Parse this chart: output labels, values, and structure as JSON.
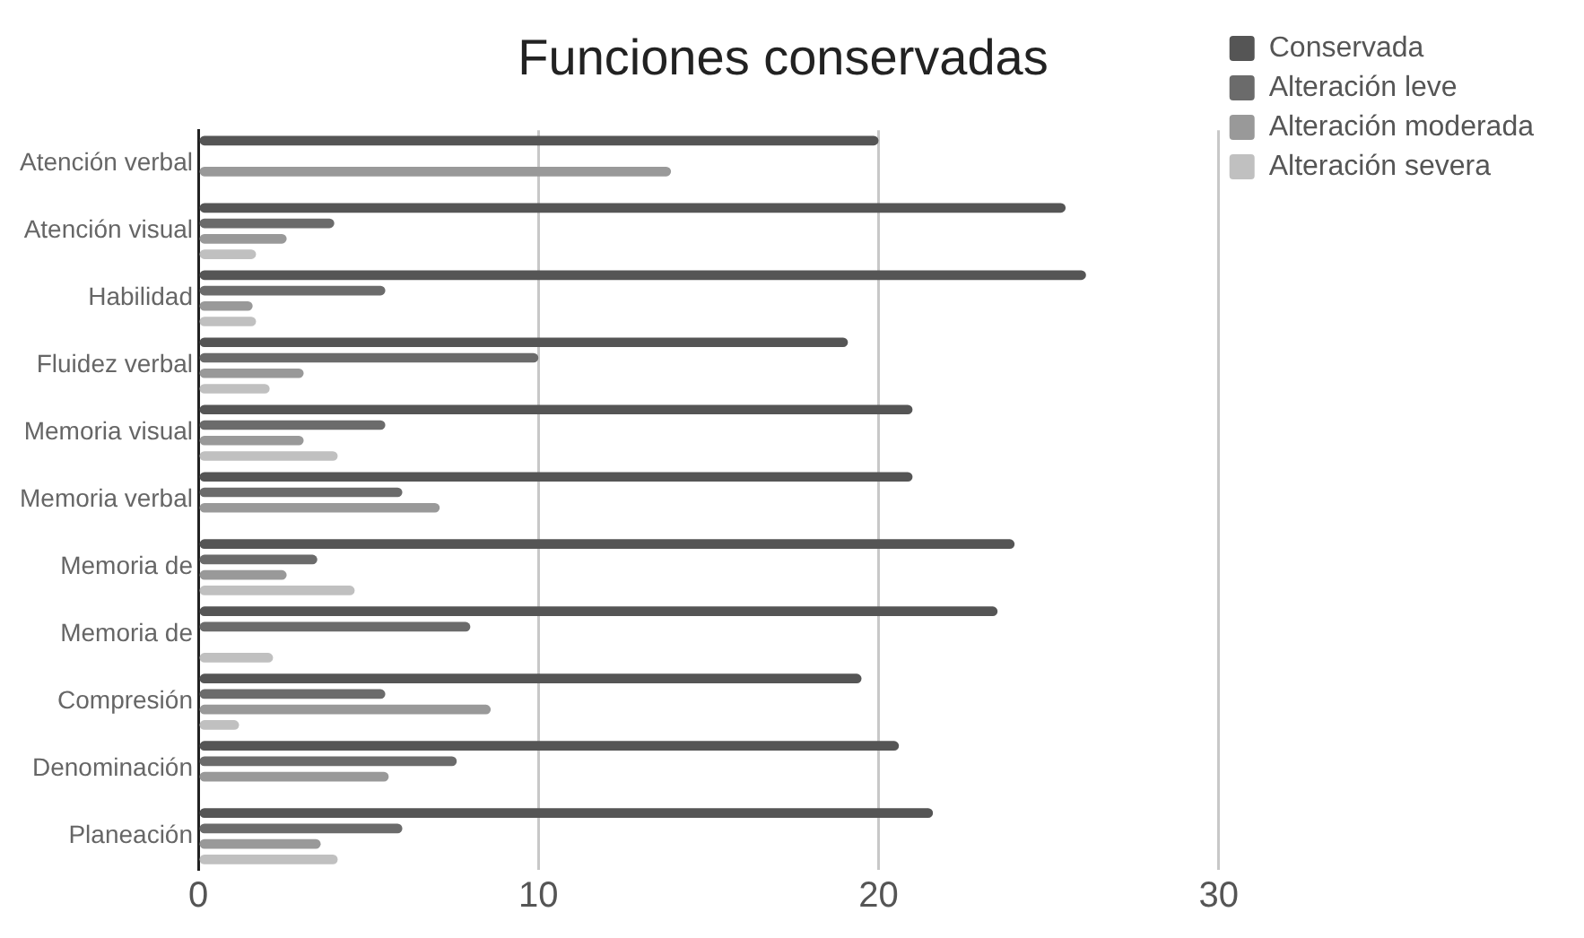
{
  "chart_data": {
    "type": "bar",
    "orientation": "horizontal",
    "title": "Funciones conservadas",
    "categories": [
      "Atención verbal",
      "Atención visual",
      "Habilidad",
      "Fluidez verbal",
      "Memoria visual",
      "Memoria verbal",
      "Memoria de",
      "Memoria de",
      "Compresión",
      "Denominación",
      "Planeación"
    ],
    "series": [
      {
        "name": "Conservada",
        "color": "#555555",
        "values": [
          20,
          25.5,
          26.1,
          19.1,
          21,
          21,
          24,
          23.5,
          19.5,
          20.6,
          21.6
        ]
      },
      {
        "name": "Alteración leve",
        "color": "#6b6b6b",
        "values": [
          null,
          4,
          5.5,
          10,
          5.5,
          6,
          3.5,
          8,
          5.5,
          7.6,
          6
        ]
      },
      {
        "name": "Alteración moderada",
        "color": "#999999",
        "values": [
          13.9,
          2.6,
          1.6,
          3.1,
          3.1,
          7.1,
          2.6,
          null,
          8.6,
          5.6,
          3.6
        ]
      },
      {
        "name": "Alteración severa",
        "color": "#c0c0c0",
        "values": [
          null,
          1.7,
          1.7,
          2.1,
          4.1,
          null,
          4.6,
          2.2,
          1.2,
          null,
          4.1
        ]
      }
    ],
    "xlim": [
      0,
      30
    ],
    "xticks": [
      0,
      10,
      20,
      30
    ],
    "grid": "x",
    "legend": "top right"
  }
}
